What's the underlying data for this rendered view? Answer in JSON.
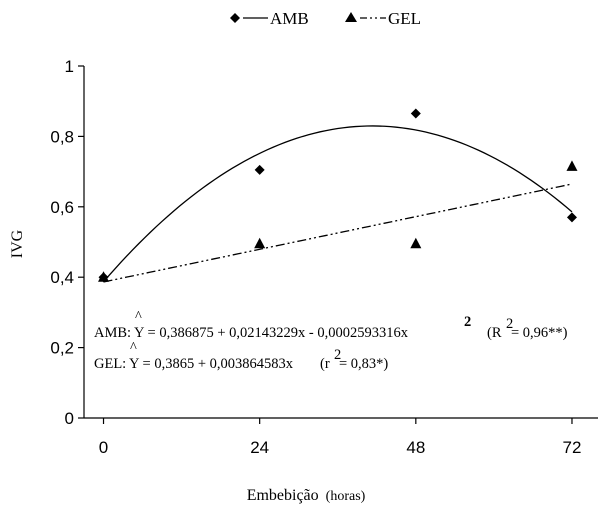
{
  "chart_data": {
    "type": "scatter",
    "title": "",
    "xlabel_main": "Embebição",
    "xlabel_unit": "(horas)",
    "ylabel": "IVG",
    "x_ticks": [
      "0",
      "24",
      "48",
      "72"
    ],
    "y_ticks": [
      "0",
      "0,2",
      "0,4",
      "0,6",
      "0,8",
      "1"
    ],
    "xlim": [
      -3,
      76
    ],
    "ylim": [
      0,
      1
    ],
    "grid": false,
    "legend_position": "top-center",
    "series": [
      {
        "name": "AMB",
        "marker": "diamond",
        "line_style": "solid",
        "x": [
          0,
          24,
          48,
          72
        ],
        "y": [
          0.4,
          0.705,
          0.865,
          0.57
        ],
        "fit": {
          "kind": "quadratic",
          "a": 0.386875,
          "b": 0.02143229,
          "c": -0.0002593316
        }
      },
      {
        "name": "GEL",
        "marker": "triangle",
        "line_style": "dash-dot-dot",
        "x": [
          0,
          24,
          48,
          72
        ],
        "y": [
          0.4,
          0.495,
          0.495,
          0.715
        ],
        "fit": {
          "kind": "linear",
          "a": 0.3865,
          "b": 0.003864583
        }
      }
    ],
    "annotations": {
      "amb_eq_label": "AMB:",
      "amb_eq_hat": "^",
      "amb_eq_body": "Y = 0,386875 + 0,02143229x - 0,0002593316x",
      "amb_eq_exp": "2",
      "amb_r_open": "(R",
      "amb_r_exp": "2",
      "amb_r_close": " = 0,96**)",
      "gel_eq_label": "GEL:",
      "gel_eq_hat": "^",
      "gel_eq_body": "Y = 0,3865 + 0,003864583x",
      "gel_r_open": "(r",
      "gel_r_exp": "2",
      "gel_r_close": " = 0,83*)"
    },
    "colors": {
      "ink": "#000000",
      "background": "#ffffff"
    }
  }
}
